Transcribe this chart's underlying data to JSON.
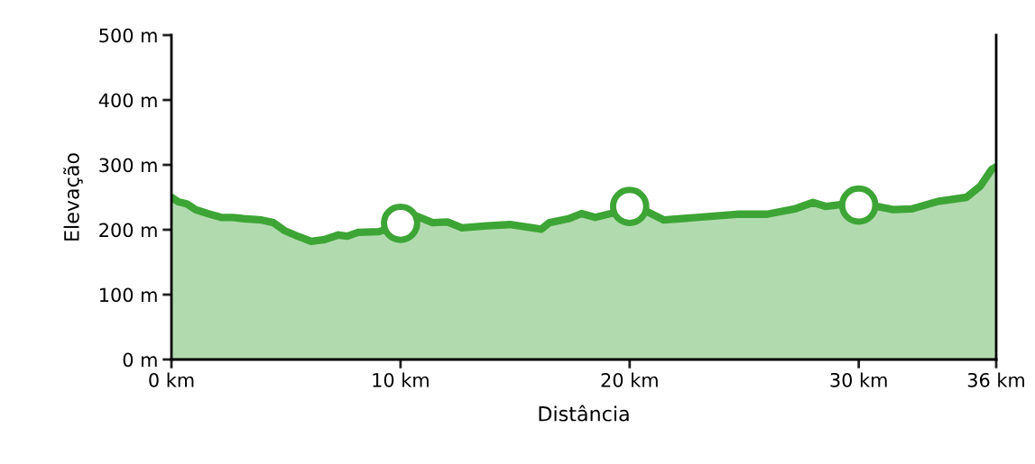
{
  "chart_data": {
    "type": "area",
    "xlabel": "Distância",
    "ylabel": "Elevação",
    "xlim": [
      0,
      36
    ],
    "ylim": [
      0,
      500
    ],
    "xticks": [
      {
        "value": 0,
        "label": "0 km"
      },
      {
        "value": 10,
        "label": "10 km"
      },
      {
        "value": 20,
        "label": "20 km"
      },
      {
        "value": 30,
        "label": "30 km"
      },
      {
        "value": 36,
        "label": "36 km"
      }
    ],
    "yticks": [
      {
        "value": 0,
        "label": "0 m"
      },
      {
        "value": 100,
        "label": "100 m"
      },
      {
        "value": 200,
        "label": "200 m"
      },
      {
        "value": 300,
        "label": "300 m"
      },
      {
        "value": 400,
        "label": "400 m"
      },
      {
        "value": 500,
        "label": "500 m"
      }
    ],
    "grid": false,
    "legend": false,
    "series": [
      {
        "color": "#3da535",
        "x": [
          0,
          0.3,
          0.67,
          1.06,
          1.58,
          2.17,
          2.68,
          3.15,
          3.94,
          4.45,
          4.92,
          5.51,
          6.1,
          6.7,
          7.29,
          7.68,
          8.15,
          9.06,
          9.65,
          10,
          10.7,
          11.4,
          12.05,
          12.68,
          13.78,
          14.77,
          15.56,
          16.15,
          16.5,
          17.33,
          17.9,
          18.5,
          19.3,
          20.3,
          21.5,
          24.8,
          26,
          27.2,
          28,
          28.55,
          29.3,
          30.5,
          31.5,
          32.3,
          33.5,
          34.7,
          35.3,
          35.8,
          36
        ],
        "values": [
          250,
          243,
          240,
          231,
          225,
          219,
          219,
          217,
          215,
          211,
          199,
          190,
          182,
          185,
          192,
          190,
          196,
          197,
          204,
          210,
          221,
          211,
          212,
          203,
          206,
          208,
          204,
          201,
          211,
          217,
          225,
          219,
          226,
          236,
          215,
          224,
          224,
          232,
          242,
          236,
          239,
          238,
          231,
          232,
          244,
          250,
          267,
          293,
          297
        ]
      },
      {
        "type": "scatter",
        "color": "#3da535",
        "marker": "circle",
        "x": [
          10,
          20,
          30
        ],
        "values": [
          210,
          236,
          238
        ]
      }
    ]
  }
}
